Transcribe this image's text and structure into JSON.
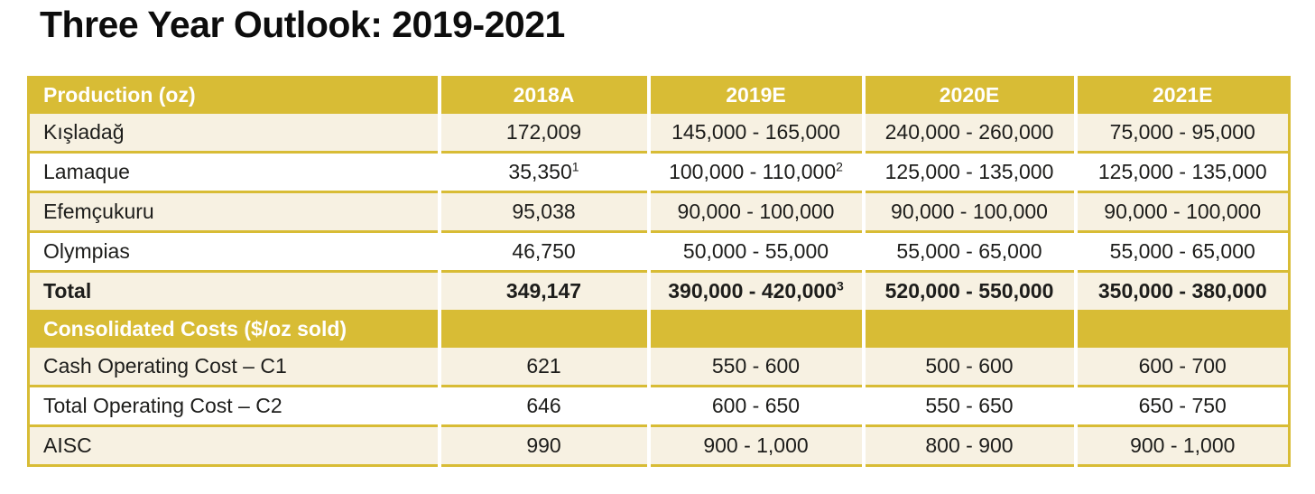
{
  "title": "Three Year Outlook: 2019-2021",
  "colors": {
    "gold": "#D8BC35",
    "cream": "#F7F1E2",
    "white": "#FFFFFF",
    "header_text": "#FFFFFF",
    "body_text": "#1D1D1B"
  },
  "table": {
    "production_header": {
      "label": "Production (oz)",
      "columns": [
        "2018A",
        "2019E",
        "2020E",
        "2021E"
      ]
    },
    "production_rows": [
      {
        "label": "Kışladağ",
        "values": [
          "172,009",
          "145,000 - 165,000",
          "240,000 - 260,000",
          "75,000 - 95,000"
        ]
      },
      {
        "label": "Lamaque",
        "values": [
          "35,350",
          "100,000 - 110,000",
          "125,000 - 135,000",
          "125,000 - 135,000"
        ],
        "footnotes": {
          "0": "1",
          "1": "2"
        }
      },
      {
        "label": "Efemçukuru",
        "values": [
          "95,038",
          "90,000 - 100,000",
          "90,000 - 100,000",
          "90,000 - 100,000"
        ]
      },
      {
        "label": "Olympias",
        "values": [
          "46,750",
          "50,000 - 55,000",
          "55,000 - 65,000",
          "55,000 - 65,000"
        ]
      },
      {
        "label": "Total",
        "values": [
          "349,147",
          "390,000 - 420,000",
          "520,000 - 550,000",
          "350,000 - 380,000"
        ],
        "footnotes": {
          "1": "3"
        }
      }
    ],
    "costs_header": {
      "label": "Consolidated Costs ($/oz sold)"
    },
    "cost_rows": [
      {
        "label": "Cash Operating Cost – C1",
        "values": [
          "621",
          "550 - 600",
          "500 - 600",
          "600 - 700"
        ]
      },
      {
        "label": "Total Operating Cost – C2",
        "values": [
          "646",
          "600 - 650",
          "550 - 650",
          "650 - 750"
        ]
      },
      {
        "label": "AISC",
        "values": [
          "990",
          "900 - 1,000",
          "800 - 900",
          "900 - 1,000"
        ]
      }
    ]
  }
}
